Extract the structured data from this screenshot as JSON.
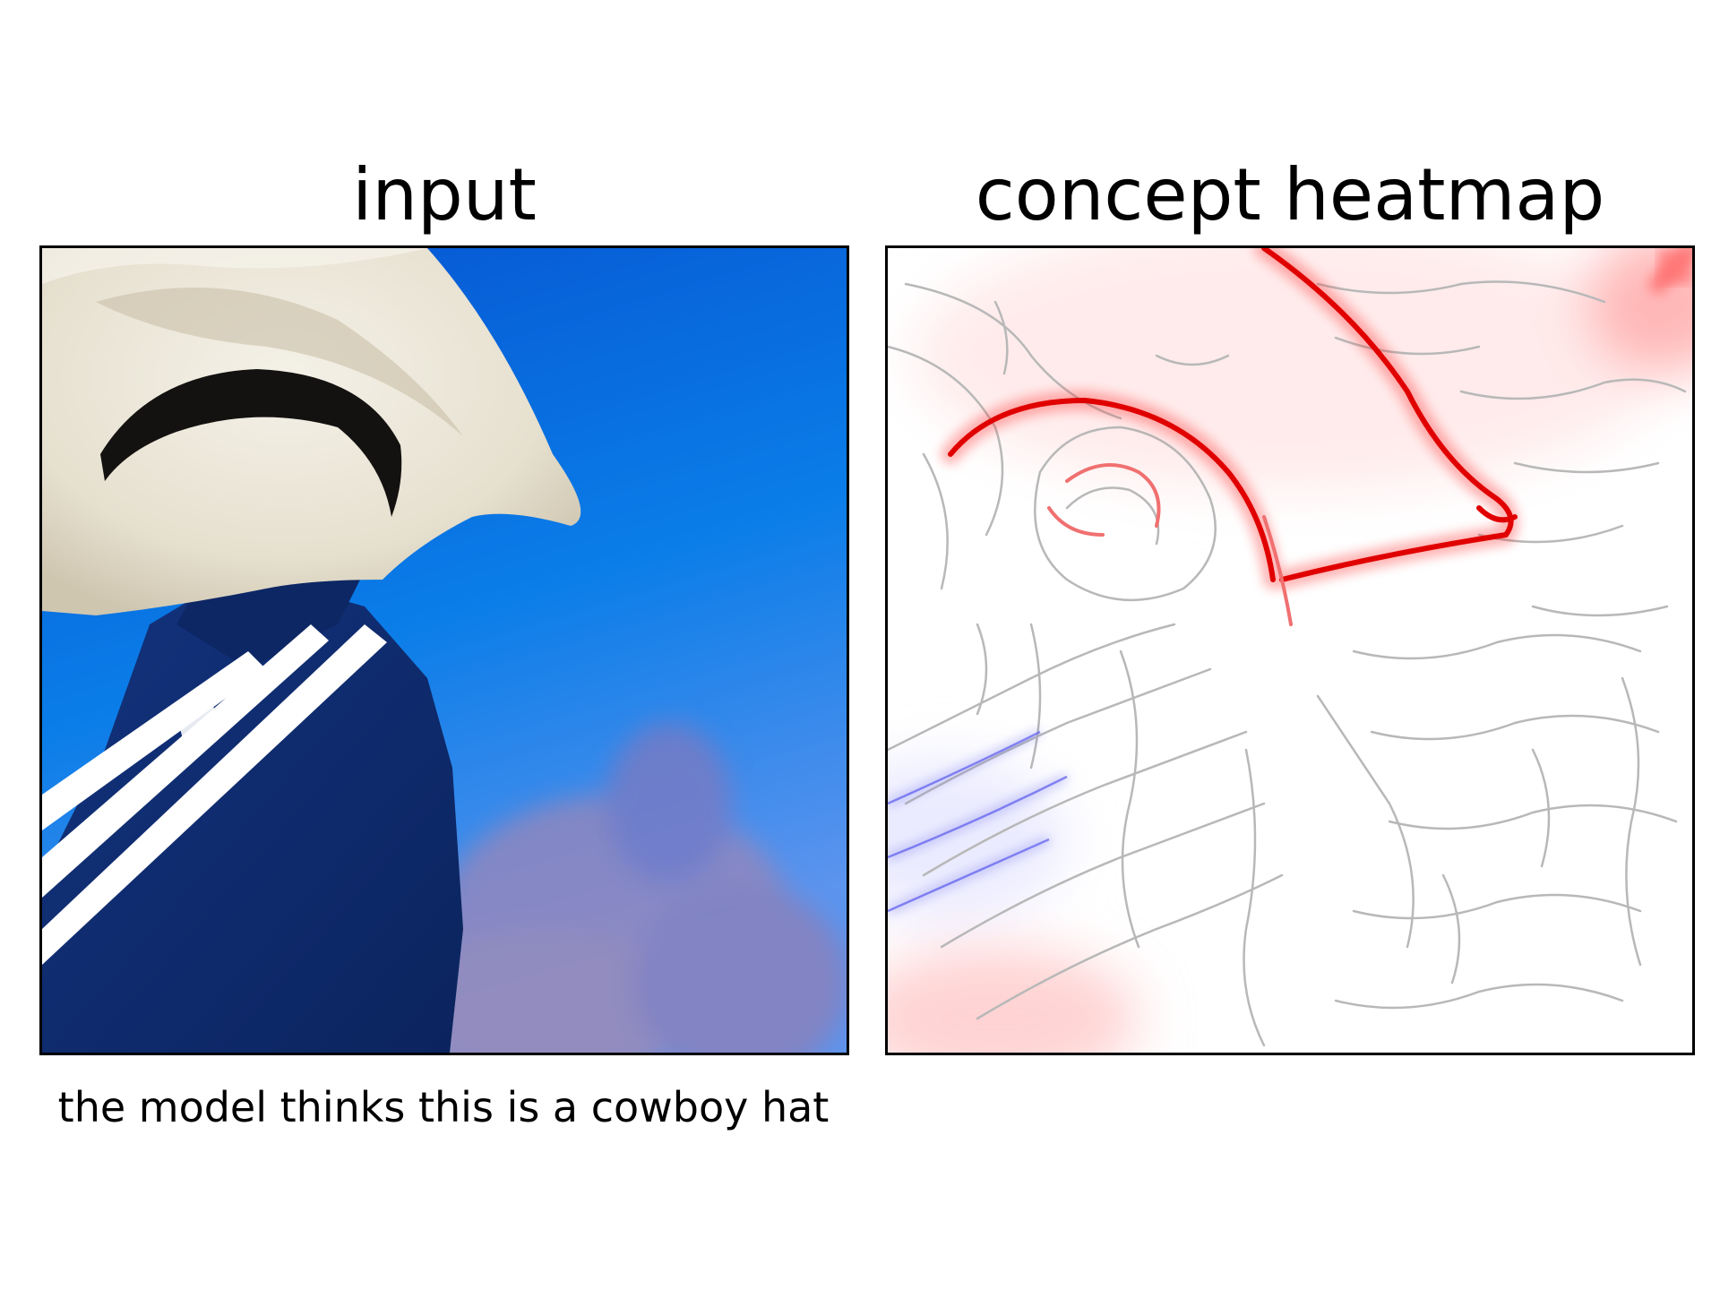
{
  "panels": {
    "left": {
      "title": "input"
    },
    "right": {
      "title": "concept heatmap"
    }
  },
  "caption": "the model thinks this is a cowboy hat",
  "colors": {
    "sky_top": "#0a5fd8",
    "sky_bottom": "#4f8ff0",
    "hat": "#ece8dc",
    "hat_shadow": "#d8d0bc",
    "jacket": "#0e2a6e",
    "stripe": "#ffffff",
    "skin": "#f0c4aa",
    "heat_positive": "#e00000",
    "heat_negative": "#4040e0",
    "edge_lines": "#b8b8b8"
  }
}
